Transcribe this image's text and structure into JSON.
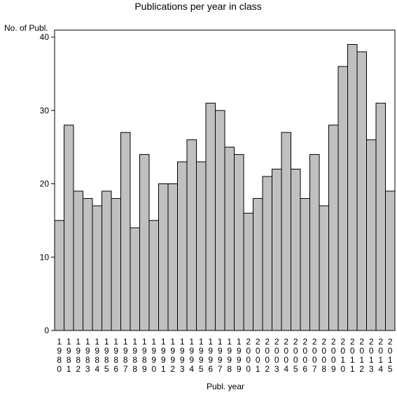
{
  "chart_data": {
    "type": "bar",
    "title": "Publications per year in class",
    "xlabel": "Publ. year",
    "ylabel": "No. of Publ.",
    "ylim": [
      0,
      40
    ],
    "yticks": [
      "0",
      "10",
      "20",
      "30",
      "40"
    ],
    "grid": false,
    "bar_color": "#c0c0c0",
    "categories": [
      "1980",
      "1981",
      "1982",
      "1983",
      "1984",
      "1985",
      "1986",
      "1987",
      "1988",
      "1989",
      "1990",
      "1991",
      "1992",
      "1993",
      "1994",
      "1995",
      "1996",
      "1997",
      "1998",
      "1999",
      "2000",
      "2001",
      "2002",
      "2003",
      "2004",
      "2005",
      "2006",
      "2007",
      "2008",
      "2009",
      "2010",
      "2011",
      "2012",
      "2013",
      "2014",
      "2015"
    ],
    "values": [
      15,
      28,
      19,
      18,
      17,
      19,
      18,
      27,
      14,
      24,
      15,
      20,
      20,
      23,
      26,
      23,
      31,
      30,
      25,
      24,
      16,
      18,
      21,
      22,
      27,
      22,
      18,
      24,
      17,
      28,
      36,
      39,
      38,
      26,
      31,
      19
    ]
  }
}
